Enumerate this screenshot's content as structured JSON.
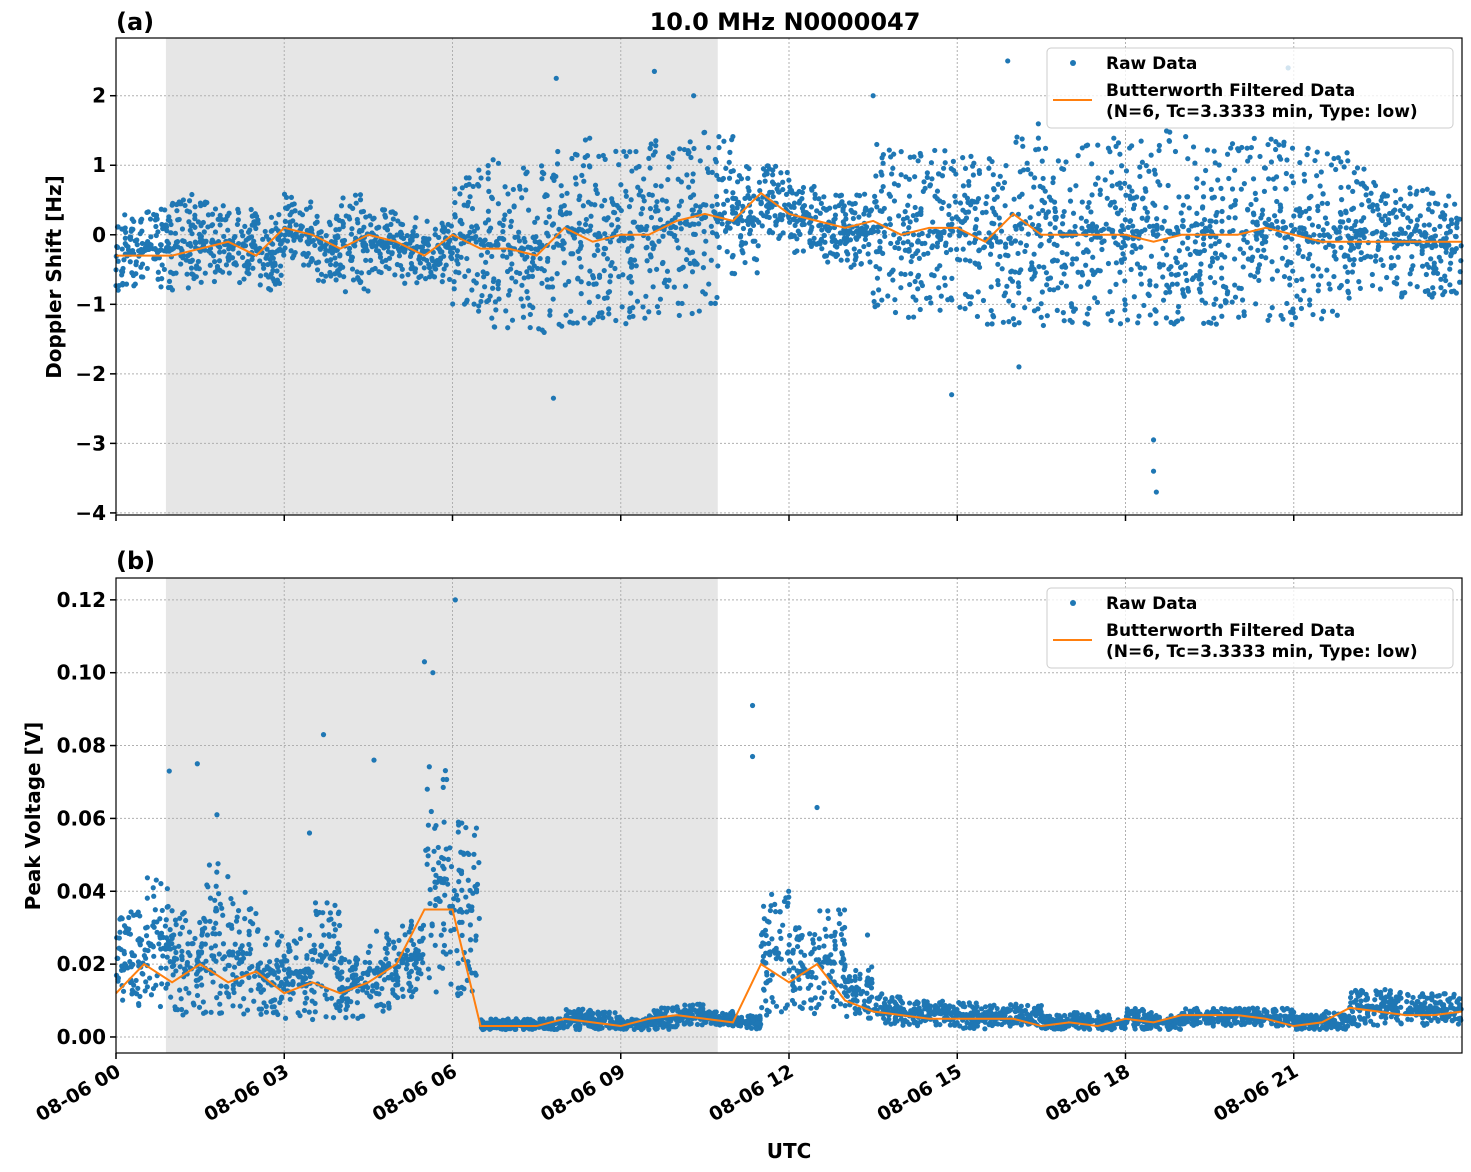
{
  "chart_data": [
    {
      "type": "scatter+line",
      "panel_label": "(a)",
      "title": "10.0 MHz N0000047",
      "xlabel": "",
      "ylabel": "Doppler Shift [Hz]",
      "xlim_hours": [
        0,
        24
      ],
      "ylim": [
        -4.03,
        2.83
      ],
      "yticks": [
        -4,
        -3,
        -2,
        -1,
        0,
        1,
        2
      ],
      "ytick_labels": [
        "−4",
        "−3",
        "−2",
        "−1",
        "0",
        "1",
        "2"
      ],
      "grid": true,
      "legend": "top-right",
      "shaded_interval_hours": [
        0.89,
        10.73
      ],
      "series": [
        {
          "name": "Raw Data",
          "kind": "scatter",
          "color": "#1f77b4",
          "x": [
            0,
            0.5,
            1,
            1.5,
            2,
            2.5,
            3,
            3.5,
            4,
            4.5,
            5,
            5.5,
            6,
            6.5,
            7,
            7.5,
            8,
            8.5,
            9,
            9.5,
            10,
            10.5,
            11,
            11.5,
            12,
            12.5,
            13,
            13.5,
            14,
            14.5,
            15,
            15.5,
            16,
            16.5,
            17,
            17.5,
            18,
            18.5,
            19,
            19.5,
            20,
            20.5,
            21,
            21.5,
            22,
            22.5,
            23,
            23.5
          ],
          "lo": [
            -0.8,
            -0.8,
            -0.8,
            -0.7,
            -0.7,
            -0.8,
            -0.5,
            -0.7,
            -0.9,
            -0.6,
            -0.7,
            -0.7,
            -1.1,
            -1.4,
            -1.5,
            -1.5,
            -1.3,
            -1.3,
            -1.3,
            -1.2,
            -1.2,
            -1.0,
            -0.6,
            -0.1,
            -0.3,
            -0.4,
            -0.5,
            -1.3,
            -1.2,
            -1.2,
            -1.2,
            -1.3,
            -1.3,
            -1.4,
            -1.3,
            -1.4,
            -1.3,
            -1.4,
            -1.3,
            -1.3,
            -1.3,
            -1.3,
            -1.3,
            -1.2,
            -0.9,
            -0.9,
            -0.9,
            -0.9
          ],
          "hi": [
            0.3,
            0.4,
            0.6,
            0.5,
            0.4,
            0.3,
            0.6,
            0.3,
            0.6,
            0.4,
            0.3,
            0.2,
            1.0,
            1.1,
            1.1,
            1.2,
            1.4,
            1.2,
            1.2,
            1.4,
            1.5,
            1.5,
            1.0,
            1.0,
            0.7,
            0.6,
            0.6,
            1.3,
            1.2,
            1.3,
            1.2,
            1.1,
            1.6,
            1.4,
            1.3,
            1.4,
            1.4,
            1.5,
            1.5,
            1.4,
            1.4,
            1.5,
            1.3,
            1.2,
            1.0,
            0.7,
            0.7,
            0.6
          ],
          "outliers": [
            [
              7.85,
              2.25
            ],
            [
              7.8,
              -2.35
            ],
            [
              9.6,
              2.35
            ],
            [
              10.3,
              2.0
            ],
            [
              13.5,
              2.0
            ],
            [
              15.9,
              2.5
            ],
            [
              18.55,
              -3.7
            ],
            [
              18.5,
              -2.95
            ],
            [
              18.5,
              -3.4
            ],
            [
              20.9,
              2.4
            ],
            [
              14.9,
              -2.3
            ],
            [
              16.1,
              -1.9
            ]
          ]
        },
        {
          "name": "Butterworth Filtered Data\n(N=6, Tc=3.3333 min, Type: low)",
          "kind": "line",
          "color": "#ff7f0e",
          "x": [
            0,
            0.5,
            1,
            1.5,
            2,
            2.5,
            3,
            3.5,
            4,
            4.5,
            5,
            5.5,
            6,
            6.5,
            7,
            7.5,
            8,
            8.5,
            9,
            9.5,
            10,
            10.5,
            11,
            11.5,
            12,
            12.5,
            13,
            13.5,
            14,
            14.5,
            15,
            15.5,
            16,
            16.5,
            17,
            17.5,
            18,
            18.5,
            19,
            19.5,
            20,
            20.5,
            21,
            21.5,
            22,
            22.5,
            23,
            23.5,
            24
          ],
          "y": [
            -0.3,
            -0.3,
            -0.3,
            -0.2,
            -0.1,
            -0.3,
            0.1,
            0.0,
            -0.2,
            0.0,
            -0.1,
            -0.3,
            0.0,
            -0.2,
            -0.2,
            -0.3,
            0.1,
            -0.1,
            0.0,
            0.0,
            0.2,
            0.3,
            0.2,
            0.6,
            0.3,
            0.2,
            0.1,
            0.2,
            0.0,
            0.1,
            0.1,
            -0.1,
            0.3,
            0.0,
            0.0,
            0.0,
            0.0,
            -0.1,
            0.0,
            0.0,
            0.0,
            0.1,
            0.0,
            -0.1,
            -0.1,
            -0.1,
            -0.1,
            -0.1,
            -0.1
          ]
        }
      ]
    },
    {
      "type": "scatter+line",
      "panel_label": "(b)",
      "xlabel": "UTC",
      "ylabel": "Peak Voltage [V]",
      "xlim_hours": [
        0,
        24
      ],
      "ylim": [
        -0.0044,
        0.126
      ],
      "yticks": [
        0,
        0.02,
        0.04,
        0.06,
        0.08,
        0.1,
        0.12
      ],
      "ytick_labels": [
        "0.00",
        "0.02",
        "0.04",
        "0.06",
        "0.08",
        "0.10",
        "0.12"
      ],
      "xticks_hours": [
        0,
        3,
        6,
        9,
        12,
        15,
        18,
        21
      ],
      "xtick_labels": [
        "08-06 00",
        "08-06 03",
        "08-06 06",
        "08-06 09",
        "08-06 12",
        "08-06 15",
        "08-06 18",
        "08-06 21"
      ],
      "grid": true,
      "legend": "top-right",
      "shaded_interval_hours": [
        0.89,
        10.73
      ],
      "series": [
        {
          "name": "Raw Data",
          "kind": "scatter",
          "color": "#1f77b4",
          "x": [
            0,
            0.5,
            1,
            1.5,
            2,
            2.5,
            3,
            3.5,
            4,
            4.5,
            5,
            5.5,
            6,
            6.5,
            7,
            7.5,
            8,
            8.5,
            9,
            9.5,
            10,
            10.5,
            11,
            11.5,
            12,
            12.5,
            13,
            13.5,
            14,
            14.5,
            15,
            15.5,
            16,
            16.5,
            17,
            17.5,
            18,
            18.5,
            19,
            19.5,
            20,
            20.5,
            21,
            21.5,
            22,
            22.5,
            23,
            23.5
          ],
          "lo": [
            0.004,
            0.006,
            0.006,
            0.006,
            0.006,
            0.006,
            0.005,
            0.004,
            0.005,
            0.006,
            0.008,
            0.012,
            0.01,
            0.002,
            0.002,
            0.002,
            0.002,
            0.002,
            0.002,
            0.002,
            0.003,
            0.003,
            0.002,
            0.006,
            0.006,
            0.006,
            0.005,
            0.003,
            0.003,
            0.003,
            0.002,
            0.003,
            0.003,
            0.002,
            0.002,
            0.002,
            0.002,
            0.002,
            0.003,
            0.003,
            0.003,
            0.003,
            0.002,
            0.002,
            0.003,
            0.003,
            0.003,
            0.003
          ],
          "hi": [
            0.035,
            0.045,
            0.035,
            0.05,
            0.04,
            0.03,
            0.03,
            0.04,
            0.022,
            0.03,
            0.035,
            0.075,
            0.06,
            0.005,
            0.005,
            0.005,
            0.008,
            0.007,
            0.005,
            0.008,
            0.009,
            0.007,
            0.006,
            0.04,
            0.03,
            0.035,
            0.02,
            0.012,
            0.01,
            0.01,
            0.01,
            0.009,
            0.009,
            0.006,
            0.007,
            0.006,
            0.008,
            0.006,
            0.008,
            0.008,
            0.008,
            0.008,
            0.006,
            0.007,
            0.013,
            0.013,
            0.012,
            0.012
          ],
          "outliers": [
            [
              0.95,
              0.073
            ],
            [
              1.45,
              0.075
            ],
            [
              1.8,
              0.061
            ],
            [
              3.45,
              0.056
            ],
            [
              3.7,
              0.083
            ],
            [
              4.6,
              0.076
            ],
            [
              5.5,
              0.103
            ],
            [
              5.65,
              0.1
            ],
            [
              6.05,
              0.12
            ],
            [
              11.35,
              0.091
            ],
            [
              11.35,
              0.077
            ],
            [
              12.5,
              0.063
            ],
            [
              13.4,
              0.028
            ]
          ]
        },
        {
          "name": "Butterworth Filtered Data\n(N=6, Tc=3.3333 min, Type: low)",
          "kind": "line",
          "color": "#ff7f0e",
          "x": [
            0,
            0.5,
            1,
            1.5,
            2,
            2.5,
            3,
            3.5,
            4,
            4.5,
            5,
            5.5,
            6,
            6.5,
            7,
            7.5,
            8,
            8.5,
            9,
            9.5,
            10,
            10.5,
            11,
            11.5,
            12,
            12.5,
            13,
            13.5,
            14,
            14.5,
            15,
            15.5,
            16,
            16.5,
            17,
            17.5,
            18,
            18.5,
            19,
            19.5,
            20,
            20.5,
            21,
            21.5,
            22,
            22.5,
            23,
            23.5,
            24
          ],
          "y": [
            0.012,
            0.02,
            0.015,
            0.02,
            0.015,
            0.018,
            0.012,
            0.015,
            0.012,
            0.015,
            0.02,
            0.035,
            0.035,
            0.003,
            0.003,
            0.003,
            0.005,
            0.004,
            0.003,
            0.005,
            0.006,
            0.005,
            0.004,
            0.02,
            0.015,
            0.02,
            0.01,
            0.007,
            0.006,
            0.005,
            0.005,
            0.005,
            0.005,
            0.003,
            0.004,
            0.003,
            0.005,
            0.004,
            0.006,
            0.006,
            0.006,
            0.005,
            0.003,
            0.004,
            0.008,
            0.007,
            0.006,
            0.006,
            0.007
          ]
        }
      ]
    }
  ],
  "legend": {
    "raw": "Raw Data",
    "filtered_line1": "Butterworth Filtered Data",
    "filtered_line2": "(N=6, Tc=3.3333 min, Type: low)"
  }
}
